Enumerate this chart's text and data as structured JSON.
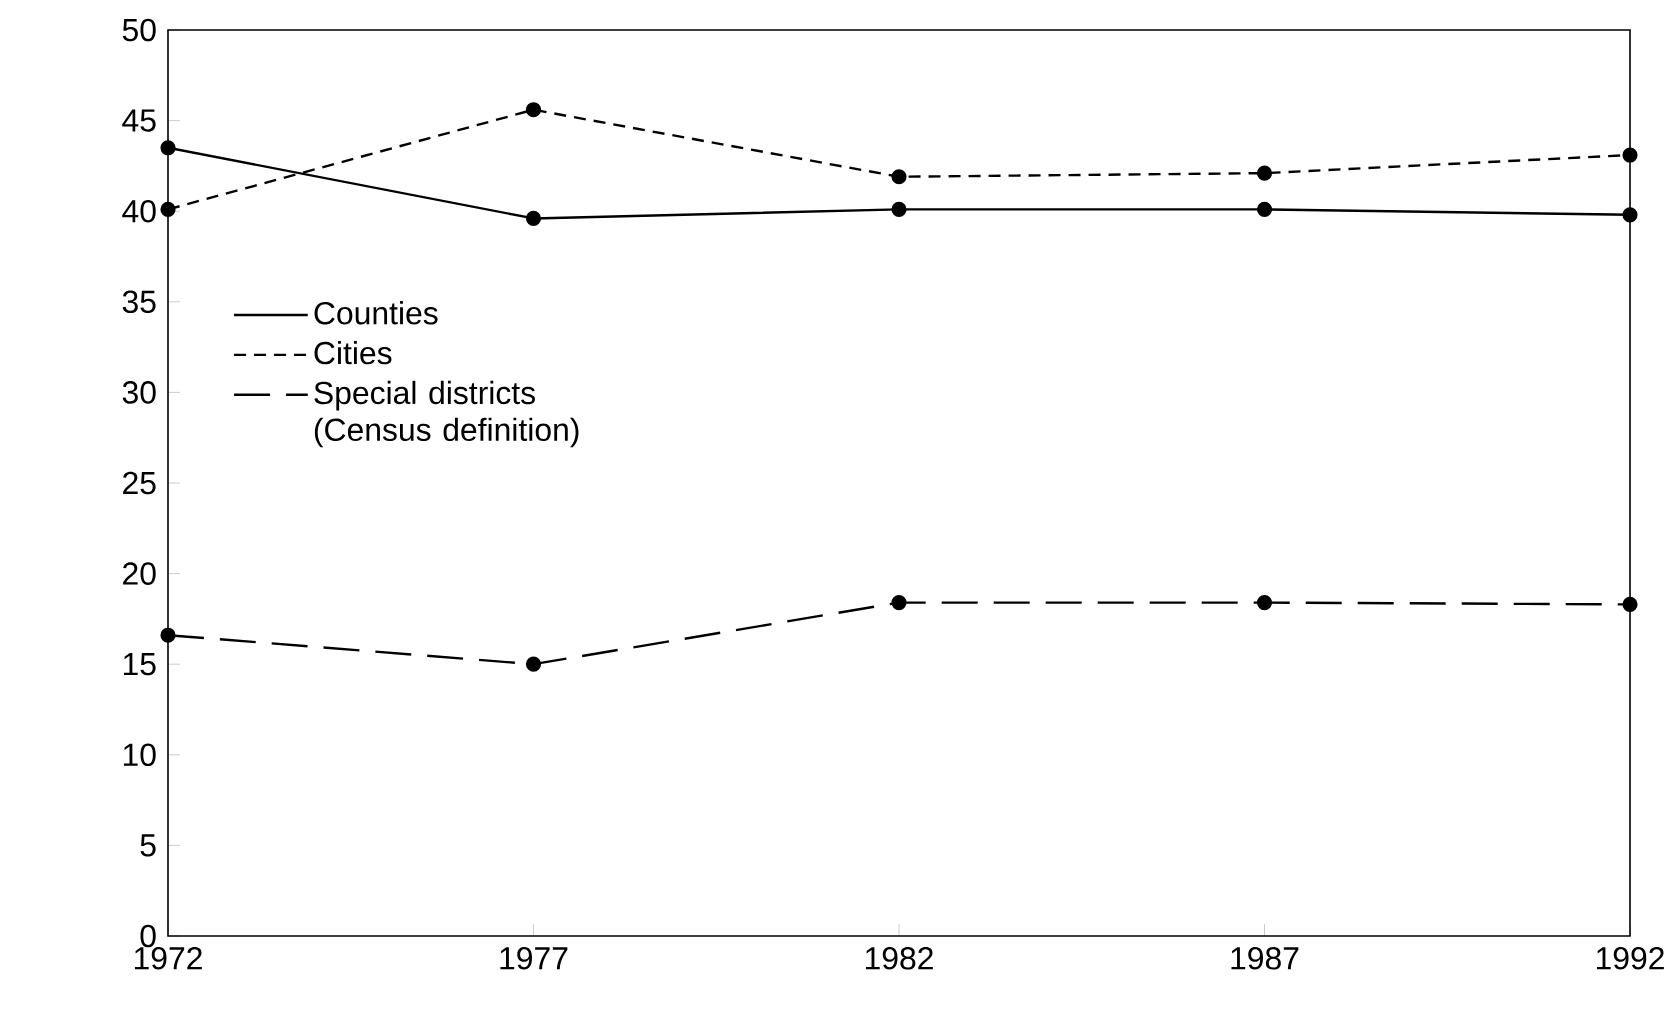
{
  "chart_data": {
    "type": "line",
    "x": [
      1972,
      1977,
      1982,
      1987,
      1992
    ],
    "series": [
      {
        "name": "Counties",
        "color": "#000000",
        "line_style": "solid",
        "values": [
          43.5,
          39.6,
          40.1,
          40.1,
          39.8
        ]
      },
      {
        "name": "Cities",
        "color": "#000000",
        "line_style": "dashed",
        "values": [
          40.1,
          45.6,
          41.9,
          42.1,
          43.1
        ]
      },
      {
        "name": "Special districts (Census definition)",
        "color": "#000000",
        "line_style": "long dashed",
        "values": [
          16.6,
          15.0,
          18.4,
          18.4,
          18.3
        ]
      }
    ],
    "xlim": [
      1972,
      1992
    ],
    "xticks": [
      1972,
      1977,
      1982,
      1987,
      1992
    ],
    "ylim": [
      0,
      50
    ],
    "yticks": [
      0,
      5,
      10,
      15,
      20,
      25,
      30,
      35,
      40,
      45,
      50
    ],
    "marker": "circle",
    "grid": false,
    "legend": "left"
  }
}
